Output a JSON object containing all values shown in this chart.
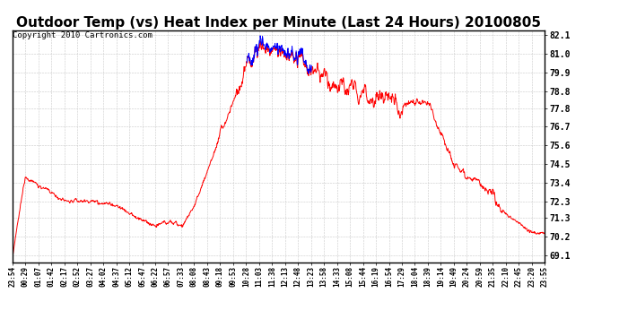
{
  "title": "Outdoor Temp (vs) Heat Index per Minute (Last 24 Hours) 20100805",
  "copyright": "Copyright 2010 Cartronics.com",
  "yticks": [
    69.1,
    70.2,
    71.3,
    72.3,
    73.4,
    74.5,
    75.6,
    76.7,
    77.8,
    78.8,
    79.9,
    81.0,
    82.1
  ],
  "ymin": 68.7,
  "ymax": 82.4,
  "xtick_labels": [
    "23:54",
    "00:29",
    "01:07",
    "01:42",
    "02:17",
    "02:52",
    "03:27",
    "04:02",
    "04:37",
    "05:12",
    "05:47",
    "06:22",
    "06:57",
    "07:33",
    "08:08",
    "08:43",
    "09:18",
    "09:53",
    "10:28",
    "11:03",
    "11:38",
    "12:13",
    "12:48",
    "13:23",
    "13:58",
    "14:33",
    "15:08",
    "15:44",
    "16:19",
    "16:54",
    "17:29",
    "18:04",
    "18:39",
    "19:14",
    "19:49",
    "20:24",
    "20:59",
    "21:35",
    "22:10",
    "22:45",
    "23:20",
    "23:55"
  ],
  "background_color": "#ffffff",
  "plot_bg_color": "#ffffff",
  "grid_color": "#c8c8c8",
  "line_color_red": "#ff0000",
  "line_color_blue": "#0000ff",
  "title_fontsize": 11,
  "copyright_fontsize": 6.5
}
